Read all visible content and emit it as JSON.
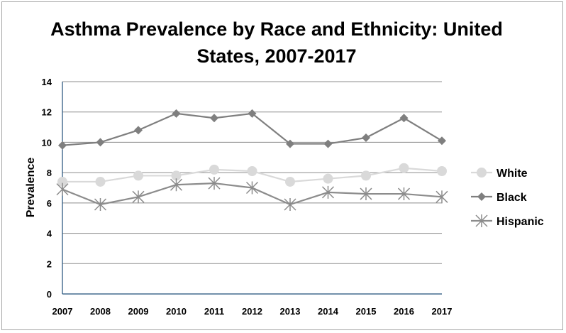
{
  "chart_data": {
    "type": "line",
    "title": "Asthma Prevalence by Race and Ethnicity: United States, 2007-2017",
    "xlabel": "",
    "ylabel": "Prevalence",
    "ylim": [
      0,
      14
    ],
    "yticks": [
      0,
      2,
      4,
      6,
      8,
      10,
      12,
      14
    ],
    "grid": true,
    "legend": "right",
    "categories": [
      "2007",
      "2008",
      "2009",
      "2010",
      "2011",
      "2012",
      "2013",
      "2014",
      "2015",
      "2016",
      "2017"
    ],
    "series": [
      {
        "name": "White",
        "marker": "circle",
        "color": "#d9d9d9",
        "values": [
          7.4,
          7.4,
          7.8,
          7.8,
          8.2,
          8.1,
          7.4,
          7.6,
          7.8,
          8.3,
          8.1
        ]
      },
      {
        "name": "Black",
        "marker": "diamond",
        "color": "#7f7f7f",
        "values": [
          9.8,
          10.0,
          10.8,
          11.9,
          11.6,
          11.9,
          9.9,
          9.9,
          10.3,
          11.6,
          10.1
        ]
      },
      {
        "name": "Hispanic",
        "marker": "asterisk",
        "color": "#8c8c8c",
        "values": [
          6.9,
          5.9,
          6.4,
          7.2,
          7.3,
          7.0,
          5.9,
          6.7,
          6.6,
          6.6,
          6.4
        ]
      }
    ]
  }
}
